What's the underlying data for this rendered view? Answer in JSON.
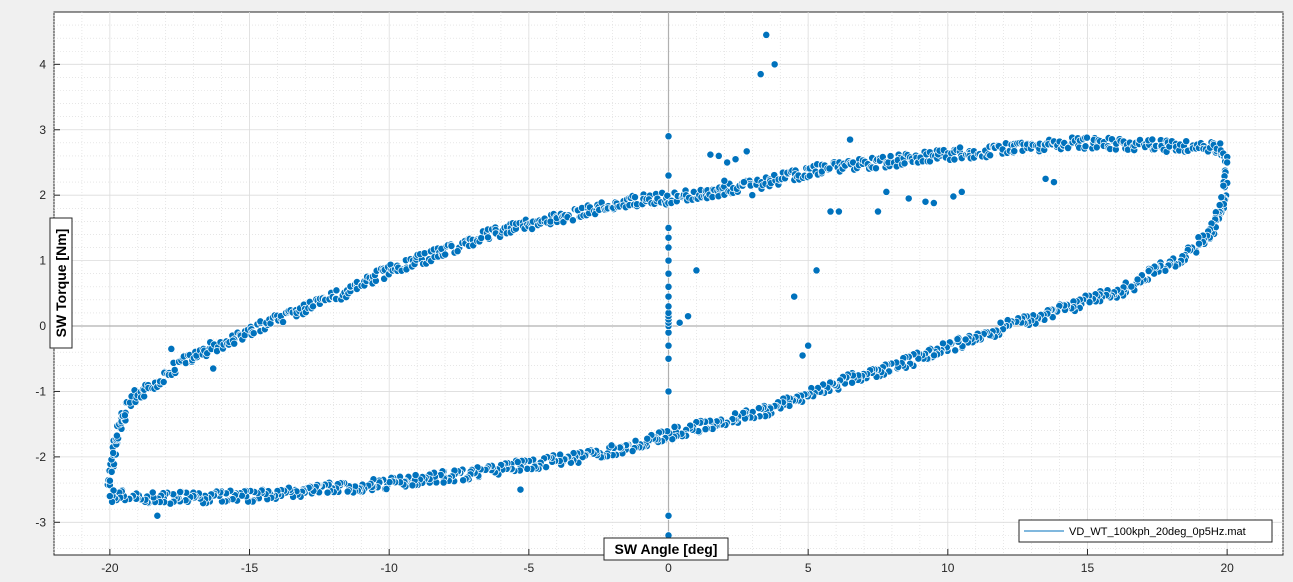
{
  "chart_data": {
    "type": "scatter",
    "xlabel": "SW Angle [deg]",
    "ylabel": "SW Torque [Nm]",
    "xlim": [
      -22,
      22
    ],
    "ylim": [
      -3.5,
      4.8
    ],
    "x_ticks": [
      -20,
      -15,
      -10,
      -5,
      0,
      5,
      10,
      15,
      20
    ],
    "y_ticks": [
      -3,
      -2,
      -1,
      0,
      1,
      2,
      3,
      4
    ],
    "grid": true,
    "minor_grid": true,
    "legend_position": "bottom-right",
    "series": [
      {
        "name": "VD_WT_100kph_20deg_0p5Hz.mat",
        "color": "#0072BD",
        "marker": "circle",
        "upper_branch": [
          [
            -20,
            -2.5
          ],
          [
            -19.9,
            -2.1
          ],
          [
            -19.8,
            -1.8
          ],
          [
            -19.6,
            -1.5
          ],
          [
            -19.4,
            -1.25
          ],
          [
            -19,
            -1.05
          ],
          [
            -18.5,
            -0.9
          ],
          [
            -18,
            -0.75
          ],
          [
            -17.5,
            -0.6
          ],
          [
            -17,
            -0.45
          ],
          [
            -16.5,
            -0.35
          ],
          [
            -16,
            -0.28
          ],
          [
            -15.5,
            -0.2
          ],
          [
            -15,
            -0.1
          ],
          [
            -14.5,
            0.02
          ],
          [
            -14,
            0.1
          ],
          [
            -13.5,
            0.2
          ],
          [
            -13,
            0.28
          ],
          [
            -12.5,
            0.35
          ],
          [
            -12,
            0.45
          ],
          [
            -11.5,
            0.55
          ],
          [
            -11,
            0.65
          ],
          [
            -10.5,
            0.75
          ],
          [
            -10,
            0.85
          ],
          [
            -9.5,
            0.92
          ],
          [
            -9,
            1.0
          ],
          [
            -8.5,
            1.08
          ],
          [
            -8,
            1.15
          ],
          [
            -7.5,
            1.22
          ],
          [
            -7,
            1.3
          ],
          [
            -6.5,
            1.38
          ],
          [
            -6,
            1.45
          ],
          [
            -5.5,
            1.5
          ],
          [
            -5,
            1.55
          ],
          [
            -4.5,
            1.6
          ],
          [
            -4,
            1.65
          ],
          [
            -3.5,
            1.7
          ],
          [
            -3,
            1.75
          ],
          [
            -2.5,
            1.8
          ],
          [
            -2,
            1.85
          ],
          [
            -1.5,
            1.9
          ],
          [
            -1,
            1.92
          ],
          [
            -0.5,
            1.95
          ],
          [
            0,
            1.95
          ],
          [
            0.5,
            2.0
          ],
          [
            1,
            2.02
          ],
          [
            1.5,
            2.05
          ],
          [
            2,
            2.08
          ],
          [
            2.5,
            2.12
          ],
          [
            3,
            2.15
          ],
          [
            3.5,
            2.2
          ],
          [
            4,
            2.25
          ],
          [
            4.5,
            2.3
          ],
          [
            5,
            2.35
          ],
          [
            5.5,
            2.4
          ],
          [
            6,
            2.42
          ],
          [
            6.5,
            2.45
          ],
          [
            7,
            2.48
          ],
          [
            7.5,
            2.5
          ],
          [
            8,
            2.52
          ],
          [
            8.5,
            2.55
          ],
          [
            9,
            2.58
          ],
          [
            9.5,
            2.6
          ],
          [
            10,
            2.62
          ],
          [
            10.5,
            2.65
          ],
          [
            11,
            2.65
          ],
          [
            11.5,
            2.67
          ],
          [
            12,
            2.7
          ],
          [
            12.5,
            2.72
          ],
          [
            13,
            2.74
          ],
          [
            13.5,
            2.76
          ],
          [
            14,
            2.78
          ],
          [
            14.5,
            2.8
          ],
          [
            15,
            2.8
          ],
          [
            15.5,
            2.8
          ],
          [
            16,
            2.78
          ],
          [
            16.5,
            2.78
          ],
          [
            17,
            2.77
          ],
          [
            17.5,
            2.76
          ],
          [
            18,
            2.75
          ],
          [
            18.5,
            2.75
          ],
          [
            19,
            2.74
          ],
          [
            19.5,
            2.72
          ],
          [
            19.8,
            2.7
          ],
          [
            20,
            2.5
          ]
        ],
        "lower_branch": [
          [
            20,
            2.3
          ],
          [
            19.9,
            2.0
          ],
          [
            19.8,
            1.8
          ],
          [
            19.6,
            1.6
          ],
          [
            19.4,
            1.4
          ],
          [
            19,
            1.25
          ],
          [
            18.5,
            1.1
          ],
          [
            18,
            0.95
          ],
          [
            17.5,
            0.85
          ],
          [
            17,
            0.75
          ],
          [
            16.5,
            0.6
          ],
          [
            16,
            0.5
          ],
          [
            15.5,
            0.45
          ],
          [
            15,
            0.4
          ],
          [
            14.5,
            0.3
          ],
          [
            14,
            0.25
          ],
          [
            13.5,
            0.18
          ],
          [
            13,
            0.1
          ],
          [
            12.5,
            0.05
          ],
          [
            12,
            0.0
          ],
          [
            11.5,
            -0.1
          ],
          [
            11,
            -0.18
          ],
          [
            10.5,
            -0.25
          ],
          [
            10,
            -0.32
          ],
          [
            9.5,
            -0.4
          ],
          [
            9,
            -0.48
          ],
          [
            8.5,
            -0.55
          ],
          [
            8,
            -0.62
          ],
          [
            7.5,
            -0.7
          ],
          [
            7,
            -0.75
          ],
          [
            6.5,
            -0.82
          ],
          [
            6,
            -0.9
          ],
          [
            5.5,
            -0.98
          ],
          [
            5,
            -1.05
          ],
          [
            4.5,
            -1.12
          ],
          [
            4,
            -1.2
          ],
          [
            3.5,
            -1.28
          ],
          [
            3,
            -1.35
          ],
          [
            2.5,
            -1.4
          ],
          [
            2,
            -1.45
          ],
          [
            1.5,
            -1.5
          ],
          [
            1,
            -1.55
          ],
          [
            0.5,
            -1.6
          ],
          [
            0,
            -1.65
          ],
          [
            -0.5,
            -1.72
          ],
          [
            -1,
            -1.78
          ],
          [
            -1.5,
            -1.85
          ],
          [
            -2,
            -1.9
          ],
          [
            -2.5,
            -1.95
          ],
          [
            -3,
            -2.0
          ],
          [
            -3.5,
            -2.02
          ],
          [
            -4,
            -2.05
          ],
          [
            -4.5,
            -2.1
          ],
          [
            -5,
            -2.12
          ],
          [
            -5.5,
            -2.15
          ],
          [
            -6,
            -2.2
          ],
          [
            -6.5,
            -2.22
          ],
          [
            -7,
            -2.25
          ],
          [
            -7.5,
            -2.28
          ],
          [
            -8,
            -2.3
          ],
          [
            -8.5,
            -2.33
          ],
          [
            -9,
            -2.35
          ],
          [
            -9.5,
            -2.38
          ],
          [
            -10,
            -2.4
          ],
          [
            -10.5,
            -2.42
          ],
          [
            -11,
            -2.45
          ],
          [
            -11.5,
            -2.47
          ],
          [
            -12,
            -2.48
          ],
          [
            -12.5,
            -2.5
          ],
          [
            -13,
            -2.52
          ],
          [
            -13.5,
            -2.55
          ],
          [
            -14,
            -2.56
          ],
          [
            -14.5,
            -2.58
          ],
          [
            -15,
            -2.6
          ],
          [
            -15.5,
            -2.6
          ],
          [
            -16,
            -2.6
          ],
          [
            -16.5,
            -2.62
          ],
          [
            -17,
            -2.62
          ],
          [
            -17.5,
            -2.62
          ],
          [
            -18,
            -2.63
          ],
          [
            -18.5,
            -2.62
          ],
          [
            -19,
            -2.62
          ],
          [
            -19.5,
            -2.6
          ],
          [
            -20,
            -2.6
          ]
        ],
        "outliers": [
          [
            3.5,
            4.45
          ],
          [
            3.3,
            3.85
          ],
          [
            3.8,
            4.0
          ],
          [
            1.5,
            2.62
          ],
          [
            1.8,
            2.6
          ],
          [
            2.1,
            2.5
          ],
          [
            2.4,
            2.55
          ],
          [
            2.8,
            2.67
          ],
          [
            2.0,
            2.22
          ],
          [
            2.7,
            2.2
          ],
          [
            3.0,
            2.0
          ],
          [
            5.8,
            1.75
          ],
          [
            6.1,
            1.75
          ],
          [
            6.5,
            2.85
          ],
          [
            7.5,
            1.75
          ],
          [
            7.8,
            2.05
          ],
          [
            8.6,
            1.95
          ],
          [
            9.2,
            1.9
          ],
          [
            9.5,
            1.88
          ],
          [
            10.2,
            1.98
          ],
          [
            10.5,
            2.05
          ],
          [
            13.5,
            2.25
          ],
          [
            13.8,
            2.2
          ],
          [
            1.0,
            0.85
          ],
          [
            0.7,
            0.15
          ],
          [
            0.4,
            0.05
          ],
          [
            4.5,
            0.45
          ],
          [
            5.3,
            0.85
          ],
          [
            4.8,
            -0.45
          ],
          [
            5.0,
            -0.3
          ],
          [
            -5.3,
            -2.5
          ],
          [
            -18.3,
            -2.9
          ],
          [
            -17.8,
            -0.35
          ],
          [
            -16.3,
            -0.65
          ]
        ],
        "vertical_column": {
          "x": 0,
          "y": [
            -3.2,
            -2.9,
            -1.0,
            -0.5,
            -0.3,
            -0.1,
            0.0,
            0.05,
            0.1,
            0.15,
            0.2,
            0.3,
            0.45,
            0.6,
            0.8,
            1.0,
            1.2,
            1.35,
            1.5,
            2.3,
            2.9
          ]
        }
      }
    ]
  }
}
